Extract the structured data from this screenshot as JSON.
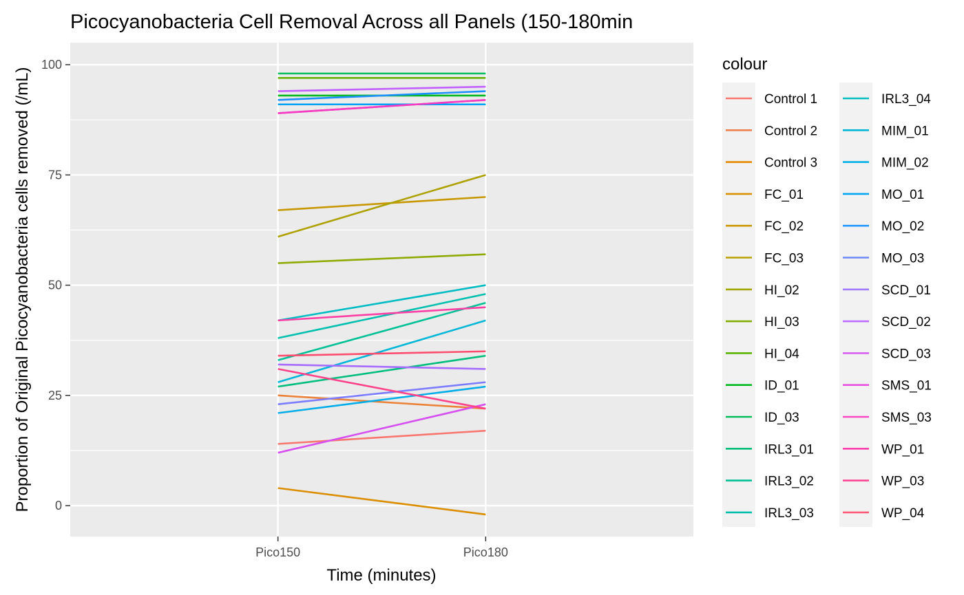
{
  "chart_data": {
    "type": "line",
    "title": "Picocyanobacteria Cell Removal Across all Panels (150-180min",
    "xlabel": "Time (minutes)",
    "ylabel": "Proportion of Original Picocyanobacteria cells removed (/mL)",
    "categories": [
      "Pico150",
      "Pico180"
    ],
    "ylim": [
      -7,
      105
    ],
    "yticks": [
      0,
      25,
      50,
      75,
      100
    ],
    "grid": true,
    "legend": {
      "title": "colour",
      "placement": "right",
      "columns": 2
    },
    "series": [
      {
        "name": "Control 1",
        "color": "#F8766D",
        "values": [
          14,
          17
        ]
      },
      {
        "name": "Control 2",
        "color": "#EC8239",
        "values": [
          25,
          22
        ]
      },
      {
        "name": "Control 3",
        "color": "#DB8E00",
        "values": [
          4,
          -2
        ]
      },
      {
        "name": "FC_01",
        "color": "#C79800",
        "values": [
          67,
          70
        ]
      },
      {
        "name": "FC_02",
        "color": "#AEA200",
        "values": [
          61,
          75
        ]
      },
      {
        "name": "FC_03",
        "color": "#8FAA00",
        "values": [
          55,
          57
        ]
      },
      {
        "name": "HI_02",
        "color": "#64B200",
        "values": [
          97,
          97
        ]
      },
      {
        "name": "HI_03",
        "color": "#00B81B",
        "values": [
          93,
          93
        ]
      },
      {
        "name": "HI_04",
        "color": "#00BD5C",
        "values": [
          98,
          98
        ]
      },
      {
        "name": "ID_01",
        "color": "#00BF7D",
        "values": [
          27,
          34
        ]
      },
      {
        "name": "ID_03",
        "color": "#00C097",
        "values": [
          33,
          46
        ]
      },
      {
        "name": "IRL3_01",
        "color": "#00C0AF",
        "values": [
          38,
          48
        ]
      },
      {
        "name": "IRL3_02",
        "color": "#00BDC4",
        "values": [
          42,
          50
        ]
      },
      {
        "name": "IRL3_03",
        "color": "#00B7D8",
        "values": [
          28,
          42
        ]
      },
      {
        "name": "IRL3_04",
        "color": "#00ADE8",
        "values": [
          21,
          27
        ]
      },
      {
        "name": "MIM_01",
        "color": "#00A0F4",
        "values": [
          91,
          91
        ]
      },
      {
        "name": "MIM_02",
        "color": "#1C8FFF",
        "values": [
          92,
          94
        ]
      },
      {
        "name": "MO_01",
        "color": "#7B7CFF",
        "values": [
          23,
          28
        ]
      },
      {
        "name": "MO_02",
        "color": "#A66BFF",
        "values": [
          32,
          31
        ]
      },
      {
        "name": "MO_03",
        "color": "#C25FFF",
        "values": [
          94,
          95
        ]
      },
      {
        "name": "SCD_01",
        "color": "#D64FF0",
        "values": [
          12,
          23
        ]
      },
      {
        "name": "SCD_02",
        "color": "#E944DB",
        "values": [
          89,
          92
        ]
      },
      {
        "name": "SCD_03",
        "color": "#F53BBF",
        "values": [
          89,
          92
        ]
      },
      {
        "name": "SMS_01",
        "color": "#FC3FA5",
        "values": [
          42,
          45
        ]
      },
      {
        "name": "SMS_03",
        "color": "#FF4289",
        "values": [
          31,
          22
        ]
      },
      {
        "name": "WP_01",
        "color": "#FD4C6D",
        "values": [
          34,
          35
        ]
      }
    ]
  },
  "legend_items": [
    {
      "name": "Control 1",
      "color": "#F8766D"
    },
    {
      "name": "Control 2",
      "color": "#F07F50"
    },
    {
      "name": "Control 3",
      "color": "#E68700"
    },
    {
      "name": "FC_01",
      "color": "#D89000"
    },
    {
      "name": "FC_02",
      "color": "#C99800"
    },
    {
      "name": "FC_03",
      "color": "#B8A000"
    },
    {
      "name": "HI_02",
      "color": "#A3A500"
    },
    {
      "name": "HI_03",
      "color": "#84AD00"
    },
    {
      "name": "HI_04",
      "color": "#5BB300"
    },
    {
      "name": "ID_01",
      "color": "#00B81F"
    },
    {
      "name": "ID_03",
      "color": "#00BC59"
    },
    {
      "name": "IRL3_01",
      "color": "#00BE7A"
    },
    {
      "name": "IRL3_02",
      "color": "#00C094"
    },
    {
      "name": "IRL3_03",
      "color": "#00C0AB"
    },
    {
      "name": "IRL3_04",
      "color": "#00BDC1"
    },
    {
      "name": "MIM_01",
      "color": "#00B8D5"
    },
    {
      "name": "MIM_02",
      "color": "#00B0E6"
    },
    {
      "name": "MO_01",
      "color": "#00A5F4"
    },
    {
      "name": "MO_02",
      "color": "#2196FF"
    },
    {
      "name": "MO_03",
      "color": "#6F88F7"
    },
    {
      "name": "SCD_01",
      "color": "#9D7BFF"
    },
    {
      "name": "SCD_02",
      "color": "#BD6DFF"
    },
    {
      "name": "SCD_03",
      "color": "#D660F2"
    },
    {
      "name": "SMS_01",
      "color": "#E952DE"
    },
    {
      "name": "SMS_03",
      "color": "#F747C6"
    },
    {
      "name": "WP_01",
      "color": "#FF40AC"
    },
    {
      "name": "WP_03",
      "color": "#FF4690"
    },
    {
      "name": "WP_04",
      "color": "#FD5B77"
    }
  ]
}
